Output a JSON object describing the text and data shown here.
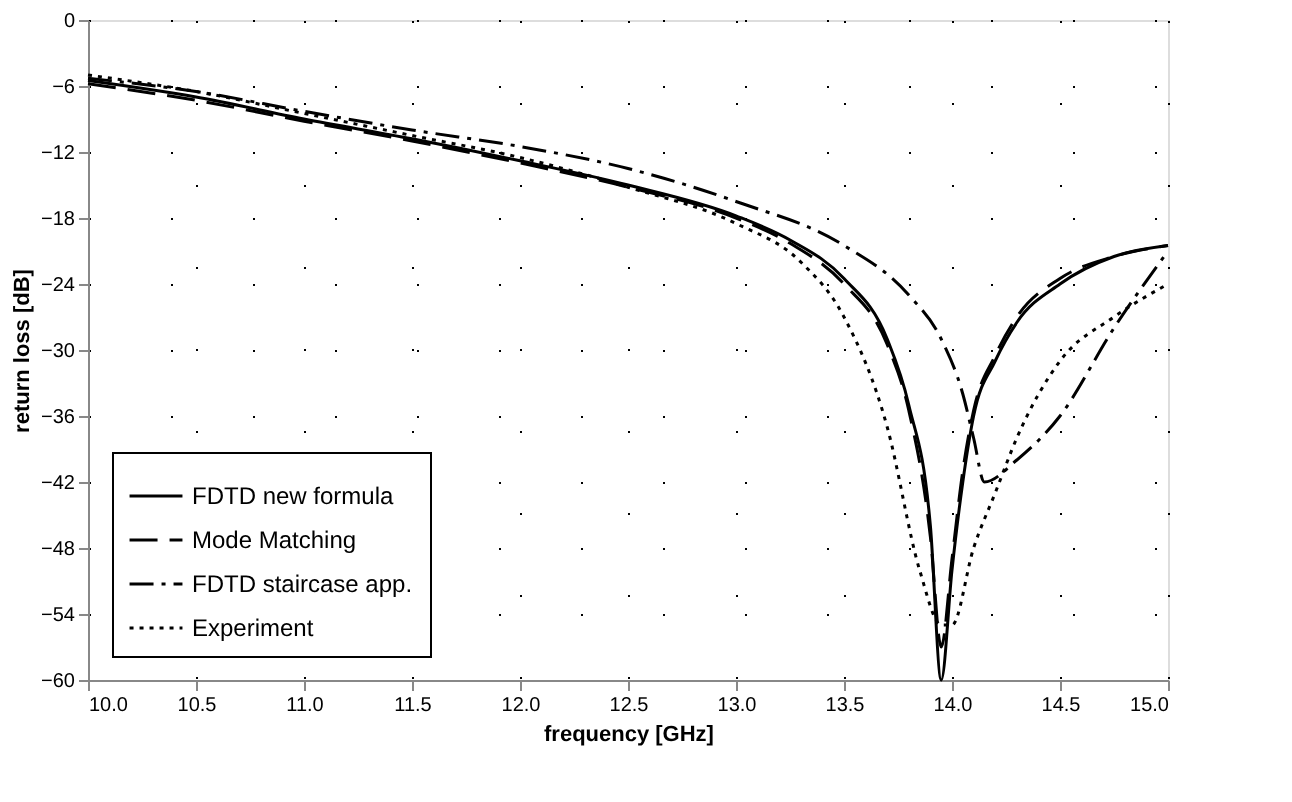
{
  "chart_data": {
    "type": "line",
    "xlabel": "frequency [GHz]",
    "ylabel": "return loss [dB]",
    "xlim": [
      10.0,
      15.0
    ],
    "ylim": [
      -60,
      0
    ],
    "xticks": [
      {
        "value": 10,
        "label": "10.0"
      },
      {
        "value": 10.5,
        "label": "10.5"
      },
      {
        "value": 11,
        "label": "11.0"
      },
      {
        "value": 11.5,
        "label": "11.5"
      },
      {
        "value": 12,
        "label": "12.0"
      },
      {
        "value": 12.5,
        "label": "12.5"
      },
      {
        "value": 13,
        "label": "13.0"
      },
      {
        "value": 13.5,
        "label": "13.5"
      },
      {
        "value": 14,
        "label": "14.0"
      },
      {
        "value": 14.5,
        "label": "14.5"
      },
      {
        "value": 15,
        "label": "15.0"
      }
    ],
    "yticks": [
      0,
      -6,
      -12,
      -18,
      -24,
      -30,
      -36,
      -42,
      -48,
      -54,
      -60
    ],
    "grid": true,
    "legend": "bottom left",
    "marker": "none",
    "series": [
      {
        "name": "FDTD new formula",
        "color": "#000000",
        "line_style": "solid",
        "x": [
          10.0,
          10.5,
          11.0,
          11.5,
          12.0,
          12.5,
          13.0,
          13.25,
          13.5,
          13.7,
          13.8,
          13.9,
          13.95,
          14.0,
          14.05,
          14.1,
          14.2,
          14.3,
          14.5,
          14.75,
          15.0
        ],
        "values": [
          -5.5,
          -7,
          -9,
          -10.8,
          -12.8,
          -15,
          -17.8,
          -20,
          -23.5,
          -29,
          -35,
          -46,
          -60,
          -50,
          -42,
          -36,
          -31,
          -27.5,
          -24,
          -21.5,
          -20.5
        ]
      },
      {
        "name": "Mode Matching",
        "color": "#000000",
        "line_style": "dashed",
        "x": [
          10.0,
          10.5,
          11.0,
          11.5,
          12.0,
          12.5,
          13.0,
          13.25,
          13.5,
          13.7,
          13.8,
          13.9,
          13.95,
          14.0,
          14.05,
          14.1,
          14.2,
          14.3,
          14.5,
          14.75,
          15.0
        ],
        "values": [
          -5.8,
          -7.3,
          -9.2,
          -11,
          -13,
          -15.2,
          -18,
          -20.3,
          -24,
          -29.5,
          -35.5,
          -47,
          -57,
          -49,
          -41,
          -35.5,
          -30.5,
          -27,
          -23.5,
          -21.5,
          -20.5
        ]
      },
      {
        "name": "FDTD staircase app.",
        "color": "#000000",
        "line_style": "dashdot",
        "x": [
          10.0,
          10.5,
          11.0,
          11.5,
          12.0,
          12.5,
          13.0,
          13.5,
          13.8,
          13.95,
          14.05,
          14.1,
          14.15,
          14.3,
          14.5,
          14.75,
          15.0
        ],
        "values": [
          -5.3,
          -6.5,
          -8.3,
          -10,
          -11.5,
          -13.5,
          -16.5,
          -20.5,
          -25,
          -29,
          -34,
          -38,
          -42,
          -40,
          -36,
          -28,
          -21
        ]
      },
      {
        "name": "Experiment",
        "color": "#000000",
        "line_style": "dotted",
        "x": [
          10.0,
          10.5,
          11.0,
          11.5,
          12.0,
          12.5,
          13.0,
          13.3,
          13.5,
          13.7,
          13.85,
          13.95,
          14.0,
          14.1,
          14.2,
          14.3,
          14.5,
          14.75,
          15.0
        ],
        "values": [
          -5,
          -6.5,
          -8.5,
          -10.5,
          -12.5,
          -15.2,
          -18.5,
          -22,
          -27,
          -37,
          -50,
          -55,
          -55,
          -48,
          -43,
          -38,
          -31,
          -27,
          -24
        ]
      }
    ]
  }
}
